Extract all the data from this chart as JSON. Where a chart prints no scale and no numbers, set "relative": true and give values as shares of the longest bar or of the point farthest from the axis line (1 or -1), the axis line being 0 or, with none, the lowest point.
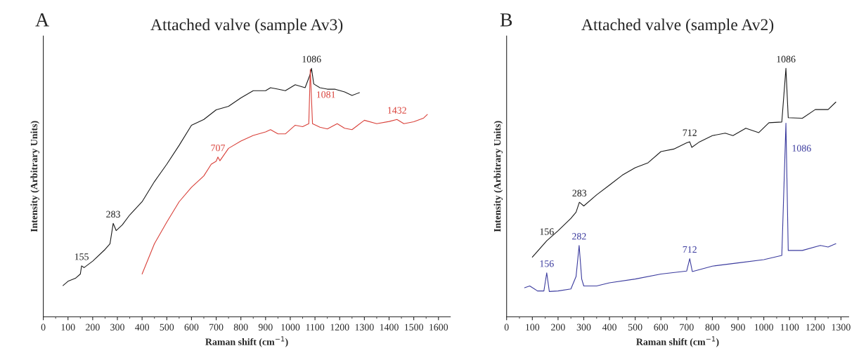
{
  "chart_data": [
    {
      "type": "line",
      "title": "Attached valve (sample Av3)",
      "xlabel": "Raman shift (cm$^{−1}$)",
      "ylabel": "Intensity (Arbitrary Units)",
      "relative": true,
      "xlim": [
        0,
        1648
      ],
      "xticks": [
        0,
        100,
        200,
        300,
        400,
        500,
        600,
        700,
        800,
        900,
        1000,
        1100,
        1200,
        1300,
        1400,
        1500,
        1600
      ],
      "grid": false,
      "legend": false,
      "tick_labels": "x",
      "annotations": [
        "A",
        {
          "text": "155",
          "x": 155,
          "y": 0.205
        },
        {
          "text": "283",
          "x": 283,
          "y": 0.376
        },
        {
          "text": "1086",
          "x": 1086,
          "y": 1.0
        },
        {
          "text": "707",
          "x": 707,
          "y": 0.643
        },
        {
          "text": "1081",
          "x": 1081,
          "y": 0.995
        },
        {
          "text": "1432",
          "x": 1432,
          "y": 0.794
        }
      ],
      "series": [
        {
          "color": "#1a1a1a",
          "x": [
            80,
            100,
            130,
            150,
            155,
            165,
            200,
            250,
            270,
            283,
            295,
            320,
            350,
            400,
            450,
            500,
            550,
            600,
            650,
            700,
            750,
            800,
            850,
            900,
            920,
            950,
            980,
            1020,
            1060,
            1080,
            1086,
            1095,
            1120,
            1150,
            1180,
            1220,
            1250,
            1280
          ],
          "values": [
            0.126,
            0.143,
            0.155,
            0.172,
            0.205,
            0.198,
            0.224,
            0.271,
            0.294,
            0.376,
            0.347,
            0.37,
            0.41,
            0.463,
            0.544,
            0.614,
            0.69,
            0.771,
            0.794,
            0.833,
            0.847,
            0.881,
            0.91,
            0.91,
            0.922,
            0.916,
            0.91,
            0.934,
            0.922,
            0.974,
            1.0,
            0.937,
            0.922,
            0.916,
            0.916,
            0.905,
            0.891,
            0.902
          ]
        },
        {
          "color": "#d9413a",
          "x": [
            400,
            450,
            500,
            550,
            600,
            650,
            680,
            700,
            707,
            715,
            750,
            800,
            850,
            900,
            920,
            950,
            980,
            1020,
            1050,
            1075,
            1081,
            1090,
            1120,
            1150,
            1190,
            1220,
            1250,
            1300,
            1350,
            1400,
            1432,
            1460,
            1500,
            1540,
            1555
          ],
          "values": [
            0.172,
            0.294,
            0.381,
            0.463,
            0.521,
            0.567,
            0.614,
            0.626,
            0.643,
            0.628,
            0.678,
            0.707,
            0.73,
            0.744,
            0.753,
            0.736,
            0.736,
            0.771,
            0.765,
            0.777,
            0.995,
            0.777,
            0.763,
            0.756,
            0.777,
            0.759,
            0.753,
            0.791,
            0.777,
            0.786,
            0.794,
            0.777,
            0.785,
            0.8,
            0.814
          ]
        }
      ]
    },
    {
      "type": "line",
      "title": "Attached valve (sample Av2)",
      "xlabel": "Raman shift (cm$^{−1}$)",
      "ylabel": "Intensity (Arbitrary Units)",
      "relative": true,
      "xlim": [
        0,
        1330
      ],
      "xticks": [
        0,
        100,
        200,
        300,
        400,
        500,
        600,
        700,
        800,
        900,
        1000,
        1100,
        1200,
        1300
      ],
      "grid": false,
      "legend": false,
      "tick_labels": "x",
      "annotations": [
        "B",
        {
          "text": "156",
          "x": 156,
          "y": 0.306
        },
        {
          "text": "283",
          "x": 283,
          "y": 0.461
        },
        {
          "text": "712",
          "x": 712,
          "y": 0.704
        },
        {
          "text": "1086",
          "x": 1086,
          "y": 1.0
        },
        {
          "text": "156",
          "x": 156,
          "y": 0.177
        },
        {
          "text": "282",
          "x": 282,
          "y": 0.287
        },
        {
          "text": "712",
          "x": 712,
          "y": 0.234
        },
        {
          "text": "1086",
          "x": 1086,
          "y": 0.779
        }
      ],
      "series": [
        {
          "color": "#1a1a1a",
          "x": [
            100,
            156,
            200,
            250,
            270,
            283,
            300,
            350,
            400,
            450,
            500,
            550,
            600,
            650,
            700,
            712,
            720,
            750,
            800,
            850,
            880,
            930,
            980,
            1020,
            1070,
            1086,
            1095,
            1150,
            1200,
            1250,
            1280
          ],
          "values": [
            0.24,
            0.306,
            0.346,
            0.396,
            0.421,
            0.461,
            0.446,
            0.491,
            0.53,
            0.57,
            0.6,
            0.62,
            0.665,
            0.675,
            0.7,
            0.704,
            0.682,
            0.704,
            0.729,
            0.739,
            0.729,
            0.759,
            0.741,
            0.781,
            0.784,
            1.0,
            0.801,
            0.799,
            0.834,
            0.834,
            0.864
          ]
        },
        {
          "color": "#3b3b9e",
          "x": [
            70,
            90,
            120,
            145,
            156,
            166,
            200,
            250,
            270,
            282,
            292,
            300,
            350,
            400,
            500,
            600,
            700,
            712,
            722,
            800,
            900,
            1000,
            1070,
            1086,
            1095,
            1150,
            1220,
            1250,
            1280
          ],
          "values": [
            0.117,
            0.124,
            0.104,
            0.104,
            0.177,
            0.102,
            0.104,
            0.112,
            0.162,
            0.287,
            0.152,
            0.124,
            0.124,
            0.137,
            0.152,
            0.172,
            0.184,
            0.234,
            0.182,
            0.204,
            0.217,
            0.23,
            0.247,
            0.779,
            0.267,
            0.267,
            0.287,
            0.281,
            0.294
          ]
        }
      ]
    }
  ]
}
